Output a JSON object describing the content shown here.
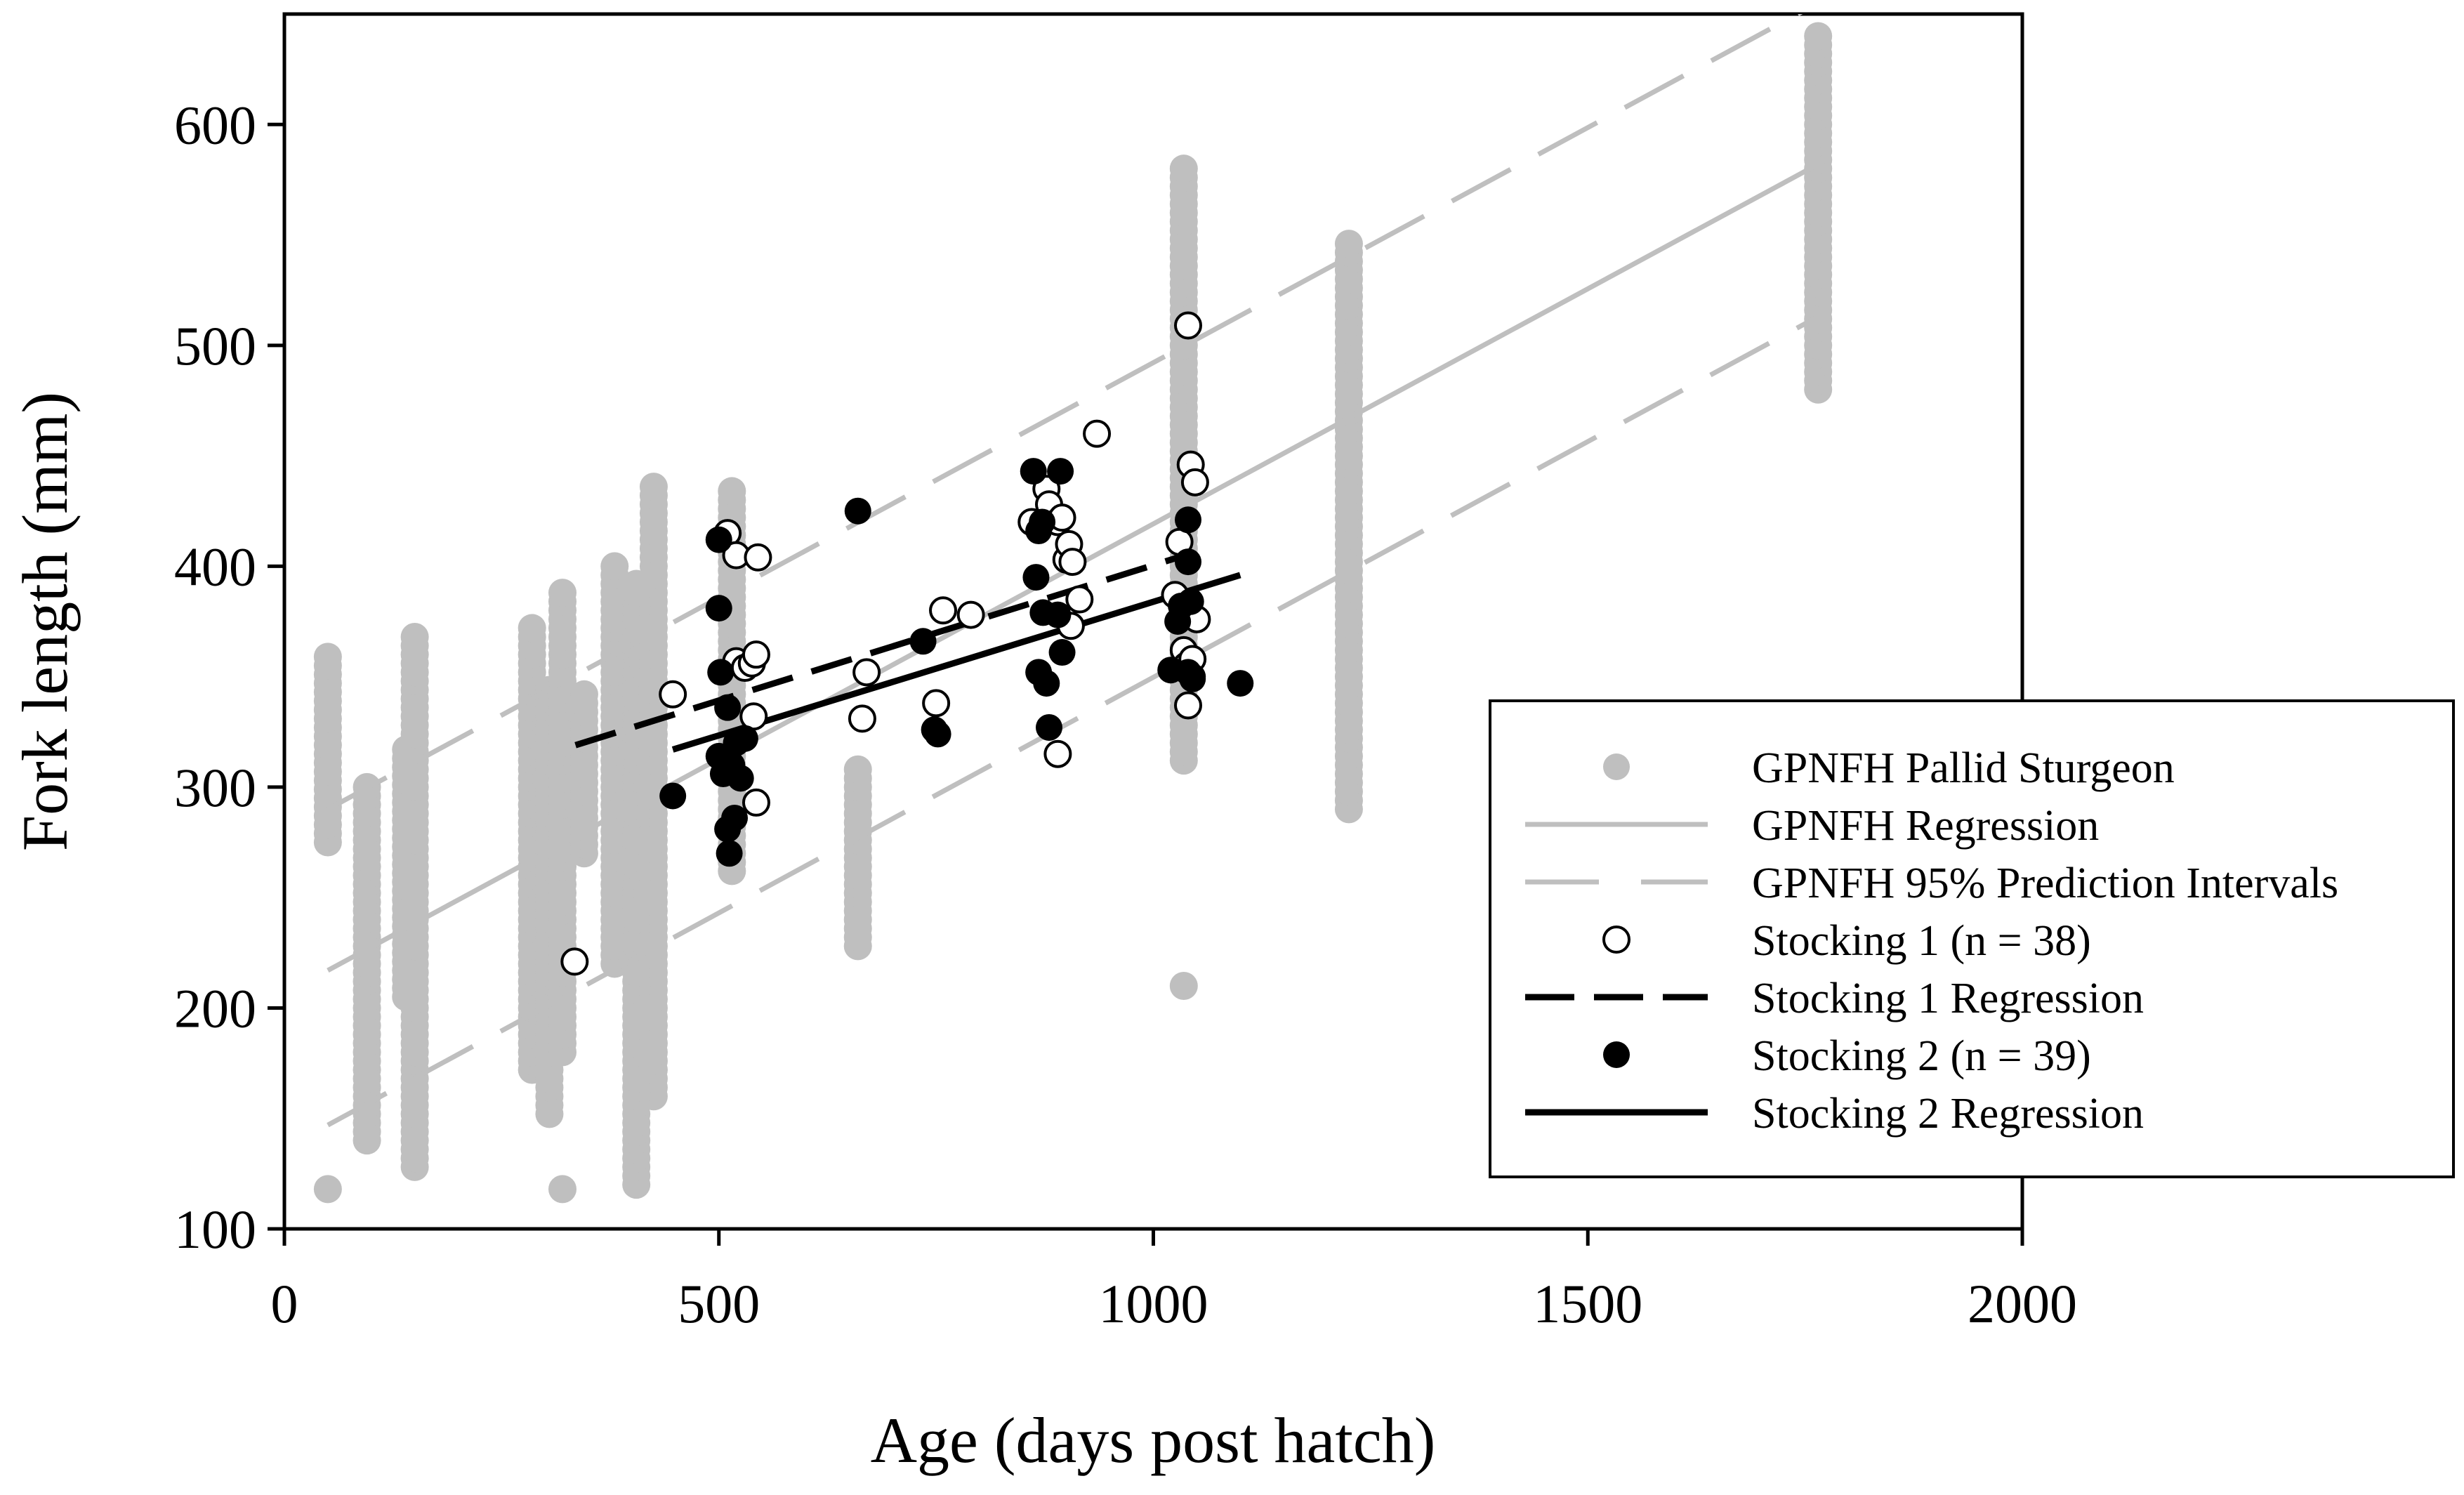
{
  "chart_data": {
    "type": "scatter",
    "title": "",
    "xlabel": "Age (days post hatch)",
    "ylabel": "Fork length (mm)",
    "xlim": [
      0,
      2000
    ],
    "ylim": [
      100,
      650
    ],
    "x_ticks": [
      0,
      500,
      1000,
      1500,
      2000
    ],
    "y_ticks": [
      100,
      200,
      300,
      400,
      500,
      600
    ],
    "legend_position": "bottom-right",
    "colors": {
      "hatchery": "#bfbfbf",
      "stocking": "#000000"
    },
    "series": [
      {
        "name": "GPNFH Pallid Sturgeon",
        "kind": "points",
        "marker": "filled-circle",
        "color": "#bfbfbf",
        "columns": [
          {
            "x": 50,
            "min": 275,
            "max": 360,
            "extra": [
              118
            ]
          },
          {
            "x": 95,
            "min": 140,
            "max": 300
          },
          {
            "x": 140,
            "min": 205,
            "max": 320
          },
          {
            "x": 150,
            "min": 128,
            "max": 368
          },
          {
            "x": 285,
            "min": 172,
            "max": 373
          },
          {
            "x": 305,
            "min": 152,
            "max": 345
          },
          {
            "x": 320,
            "min": 180,
            "max": 388,
            "extra": [
              118
            ]
          },
          {
            "x": 345,
            "min": 270,
            "max": 345
          },
          {
            "x": 380,
            "min": 220,
            "max": 400
          },
          {
            "x": 405,
            "min": 120,
            "max": 395
          },
          {
            "x": 425,
            "min": 160,
            "max": 436
          },
          {
            "x": 515,
            "min": 262,
            "max": 436
          },
          {
            "x": 660,
            "min": 228,
            "max": 308
          },
          {
            "x": 1035,
            "min": 312,
            "max": 581,
            "extra": [
              210
            ]
          },
          {
            "x": 1225,
            "min": 290,
            "max": 548
          },
          {
            "x": 1765,
            "min": 480,
            "max": 642
          }
        ]
      },
      {
        "name": "GPNFH Regression",
        "kind": "line",
        "style": "solid",
        "color": "#bfbfbf",
        "x": [
          50,
          1765
        ],
        "y": [
          217,
          582
        ]
      },
      {
        "name": "GPNFH 95% Prediction Intervals",
        "kind": "line",
        "style": "long-dash",
        "color": "#bfbfbf",
        "lower": {
          "x": [
            50,
            1765
          ],
          "y": [
            147,
            513
          ]
        },
        "upper": {
          "x": [
            50,
            1765
          ],
          "y": [
            290,
            655
          ]
        }
      },
      {
        "name": "Stocking 1 (n = 38)",
        "kind": "points",
        "marker": "open-circle",
        "color": "#000000",
        "points": [
          [
            334,
            221
          ],
          [
            447,
            342
          ],
          [
            510,
            415
          ],
          [
            520,
            405
          ],
          [
            520,
            357
          ],
          [
            530,
            354
          ],
          [
            538,
            356
          ],
          [
            543,
            360
          ],
          [
            545,
            404
          ],
          [
            540,
            332
          ],
          [
            543,
            293
          ],
          [
            670,
            352
          ],
          [
            665,
            331
          ],
          [
            750,
            338
          ],
          [
            758,
            380
          ],
          [
            790,
            378
          ],
          [
            860,
            420
          ],
          [
            877,
            435
          ],
          [
            880,
            428
          ],
          [
            890,
            420
          ],
          [
            895,
            422
          ],
          [
            900,
            403
          ],
          [
            903,
            410
          ],
          [
            907,
            402
          ],
          [
            905,
            373
          ],
          [
            915,
            385
          ],
          [
            890,
            315
          ],
          [
            935,
            460
          ],
          [
            1025,
            387
          ],
          [
            1030,
            411
          ],
          [
            1035,
            362
          ],
          [
            1040,
            509
          ],
          [
            1040,
            337
          ],
          [
            1043,
            446
          ],
          [
            1048,
            438
          ],
          [
            1050,
            376
          ],
          [
            1038,
            355
          ],
          [
            1045,
            358
          ]
        ]
      },
      {
        "name": "Stocking 1 Regression",
        "kind": "line",
        "style": "dash",
        "color": "#000000",
        "x": [
          335,
          1045
        ],
        "y": [
          319,
          406
        ]
      },
      {
        "name": "Stocking 2 (n = 39)",
        "kind": "points",
        "marker": "filled-circle",
        "color": "#000000",
        "points": [
          [
            447,
            296
          ],
          [
            500,
            412
          ],
          [
            500,
            381
          ],
          [
            502,
            352
          ],
          [
            500,
            314
          ],
          [
            505,
            306
          ],
          [
            510,
            336
          ],
          [
            510,
            281
          ],
          [
            512,
            270
          ],
          [
            515,
            310
          ],
          [
            518,
            286
          ],
          [
            520,
            320
          ],
          [
            525,
            304
          ],
          [
            530,
            322
          ],
          [
            660,
            425
          ],
          [
            735,
            366
          ],
          [
            748,
            326
          ],
          [
            752,
            324
          ],
          [
            862,
            443
          ],
          [
            865,
            395
          ],
          [
            868,
            416
          ],
          [
            872,
            420
          ],
          [
            868,
            352
          ],
          [
            873,
            379
          ],
          [
            877,
            347
          ],
          [
            880,
            327
          ],
          [
            890,
            378
          ],
          [
            893,
            443
          ],
          [
            895,
            361
          ],
          [
            1020,
            353
          ],
          [
            1028,
            375
          ],
          [
            1032,
            382
          ],
          [
            1040,
            421
          ],
          [
            1040,
            402
          ],
          [
            1043,
            384
          ],
          [
            1045,
            349
          ],
          [
            1040,
            352
          ],
          [
            1100,
            347
          ],
          [
            1045,
            350
          ]
        ]
      },
      {
        "name": "Stocking 2 Regression",
        "kind": "line",
        "style": "solid",
        "color": "#000000",
        "x": [
          447,
          1100
        ],
        "y": [
          317,
          396
        ]
      }
    ]
  }
}
